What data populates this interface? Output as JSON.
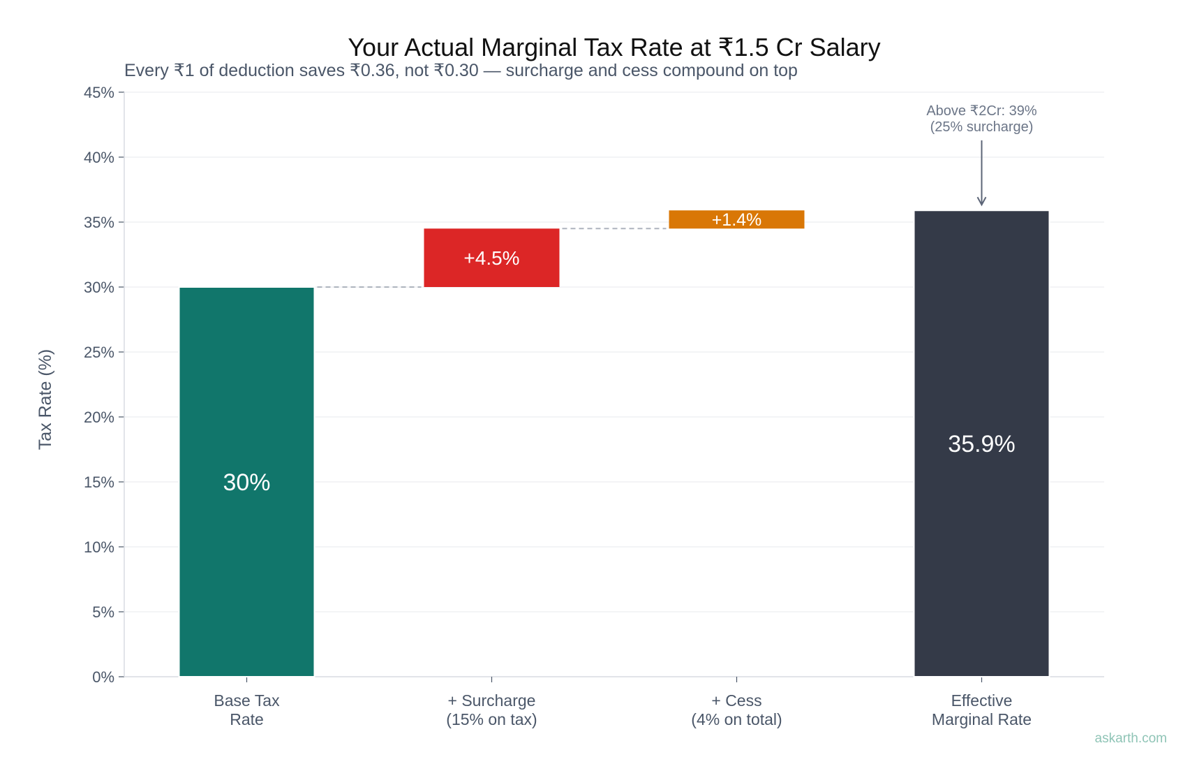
{
  "chart_data": {
    "type": "bar",
    "subtype": "waterfall",
    "title": "Your Actual Marginal Tax Rate at ₹1.5 Cr Salary",
    "subtitle": "Every ₹1 of deduction saves ₹0.36, not ₹0.30 — surcharge and cess compound on top",
    "ylabel": "Tax Rate (%)",
    "xlabel": "",
    "ylim": [
      0,
      45
    ],
    "y_ticks": [
      0,
      5,
      10,
      15,
      20,
      25,
      30,
      35,
      40,
      45
    ],
    "y_tick_suffix": "%",
    "grid": true,
    "categories": [
      [
        "Base Tax",
        "Rate"
      ],
      [
        "+ Surcharge",
        "(15% on tax)"
      ],
      [
        "+ Cess",
        "(4% on total)"
      ],
      [
        "Effective",
        "Marginal Rate"
      ]
    ],
    "bars": [
      {
        "start": 0,
        "end": 30,
        "label": "30%",
        "color": "#11766b",
        "kind": "total"
      },
      {
        "start": 30,
        "end": 34.5,
        "label": "+4.5%",
        "color": "#dc2626",
        "kind": "increment"
      },
      {
        "start": 34.5,
        "end": 35.9,
        "label": "+1.4%",
        "color": "#d97706",
        "kind": "increment"
      },
      {
        "start": 0,
        "end": 35.9,
        "label": "35.9%",
        "color": "#343a48",
        "kind": "total"
      }
    ],
    "annotation": {
      "text_lines": [
        "Above ₹2Cr: 39%",
        "(25% surcharge)"
      ],
      "target_bar": 3
    },
    "credit": "askarth.com"
  }
}
